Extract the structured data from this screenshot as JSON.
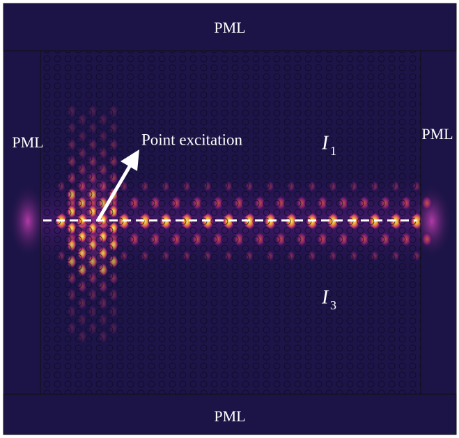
{
  "labels": {
    "pml_top": "PML",
    "pml_left": "PML",
    "pml_right": "PML",
    "pml_bottom": "PML"
  },
  "annotation": "Point excitation",
  "regions": [
    {
      "symbol": "I",
      "subscript": "1"
    },
    {
      "symbol": "I",
      "subscript": "3"
    }
  ]
}
